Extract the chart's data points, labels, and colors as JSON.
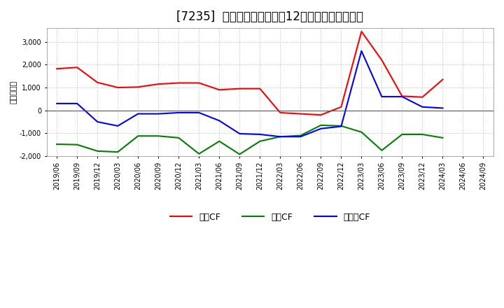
{
  "title": "[7235]  キャッシュフローの12か月移動合計の推移",
  "ylabel": "（百万円）",
  "x_labels": [
    "2019/06",
    "2019/09",
    "2019/12",
    "2020/03",
    "2020/06",
    "2020/09",
    "2020/12",
    "2021/03",
    "2021/06",
    "2021/09",
    "2021/12",
    "2022/03",
    "2022/06",
    "2022/09",
    "2022/12",
    "2023/03",
    "2023/06",
    "2023/09",
    "2023/12",
    "2024/03",
    "2024/06",
    "2024/09"
  ],
  "operating_cf": [
    1820,
    1880,
    1220,
    1000,
    1020,
    1150,
    1200,
    1200,
    900,
    950,
    950,
    -100,
    -150,
    -200,
    150,
    3450,
    2200,
    620,
    580,
    1350,
    null,
    null
  ],
  "investing_cf": [
    -1480,
    -1500,
    -1780,
    -1820,
    -1120,
    -1120,
    -1200,
    -1900,
    -1350,
    -1920,
    -1350,
    -1150,
    -1100,
    -650,
    -680,
    -950,
    -1750,
    -1050,
    -1050,
    -1200,
    null,
    null
  ],
  "free_cf": [
    300,
    300,
    -500,
    -680,
    -150,
    -150,
    -100,
    -100,
    -450,
    -1020,
    -1050,
    -1150,
    -1150,
    -800,
    -700,
    2600,
    600,
    600,
    150,
    100,
    null,
    null
  ],
  "ylim": [
    -2000,
    3600
  ],
  "yticks": [
    -2000,
    -1000,
    0,
    1000,
    2000,
    3000
  ],
  "colors": {
    "operating": "#ff0000",
    "investing": "#008000",
    "free": "#0000ff"
  },
  "legend_labels": [
    "営業CF",
    "投資CF",
    "フリーCF"
  ],
  "background_color": "#ffffff",
  "plot_bg_color": "#ffffff",
  "grid_color": "#bbbbbb",
  "line_width": 1.5,
  "title_fontsize": 12
}
